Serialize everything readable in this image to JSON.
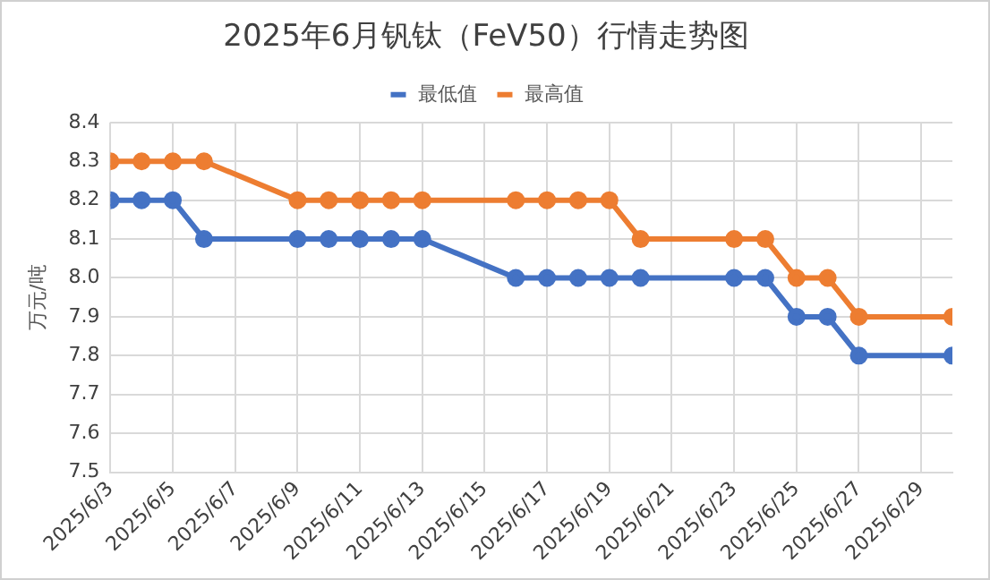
{
  "chart_data": {
    "type": "line",
    "title": "2025年6月钒钛（FeV50）行情走势图",
    "ylabel": "万元/吨",
    "x": [
      "2025-06-03",
      "2025-06-04",
      "2025-06-05",
      "2025-06-06",
      "2025-06-09",
      "2025-06-10",
      "2025-06-11",
      "2025-06-12",
      "2025-06-13",
      "2025-06-16",
      "2025-06-17",
      "2025-06-18",
      "2025-06-19",
      "2025-06-20",
      "2025-06-23",
      "2025-06-24",
      "2025-06-25",
      "2025-06-26",
      "2025-06-27",
      "2025-06-30"
    ],
    "series": [
      {
        "name": "最低值",
        "color": "#4472c4",
        "values": [
          8.2,
          8.2,
          8.2,
          8.1,
          8.1,
          8.1,
          8.1,
          8.1,
          8.1,
          8.0,
          8.0,
          8.0,
          8.0,
          8.0,
          8.0,
          8.0,
          7.9,
          7.9,
          7.8,
          7.8
        ]
      },
      {
        "name": "最高值",
        "color": "#ed7d31",
        "values": [
          8.3,
          8.3,
          8.3,
          8.3,
          8.2,
          8.2,
          8.2,
          8.2,
          8.2,
          8.2,
          8.2,
          8.2,
          8.2,
          8.1,
          8.1,
          8.1,
          8.0,
          8.0,
          7.9,
          7.9
        ]
      }
    ],
    "xlim": [
      "2025-06-03",
      "2025-06-30"
    ],
    "xticks": [
      {
        "value": "2025-06-03",
        "label": "2025/6/3"
      },
      {
        "value": "2025-06-05",
        "label": "2025/6/5"
      },
      {
        "value": "2025-06-07",
        "label": "2025/6/7"
      },
      {
        "value": "2025-06-09",
        "label": "2025/6/9"
      },
      {
        "value": "2025-06-11",
        "label": "2025/6/11"
      },
      {
        "value": "2025-06-13",
        "label": "2025/6/13"
      },
      {
        "value": "2025-06-15",
        "label": "2025/6/15"
      },
      {
        "value": "2025-06-17",
        "label": "2025/6/17"
      },
      {
        "value": "2025-06-19",
        "label": "2025/6/19"
      },
      {
        "value": "2025-06-21",
        "label": "2025/6/21"
      },
      {
        "value": "2025-06-23",
        "label": "2025/6/23"
      },
      {
        "value": "2025-06-25",
        "label": "2025/6/25"
      },
      {
        "value": "2025-06-27",
        "label": "2025/6/27"
      },
      {
        "value": "2025-06-29",
        "label": "2025/6/29"
      }
    ],
    "ylim": [
      7.5,
      8.4
    ],
    "yticks": [
      {
        "value": 7.5,
        "label": "7.5"
      },
      {
        "value": 7.6,
        "label": "7.6"
      },
      {
        "value": 7.7,
        "label": "7.7"
      },
      {
        "value": 7.8,
        "label": "7.8"
      },
      {
        "value": 7.9,
        "label": "7.9"
      },
      {
        "value": 8.0,
        "label": "8.0"
      },
      {
        "value": 8.1,
        "label": "8.1"
      },
      {
        "value": 8.2,
        "label": "8.2"
      },
      {
        "value": 8.3,
        "label": "8.3"
      },
      {
        "value": 8.4,
        "label": "8.4"
      }
    ],
    "grid": true,
    "legend": "top",
    "marker": "circle",
    "line_style": "solid"
  }
}
